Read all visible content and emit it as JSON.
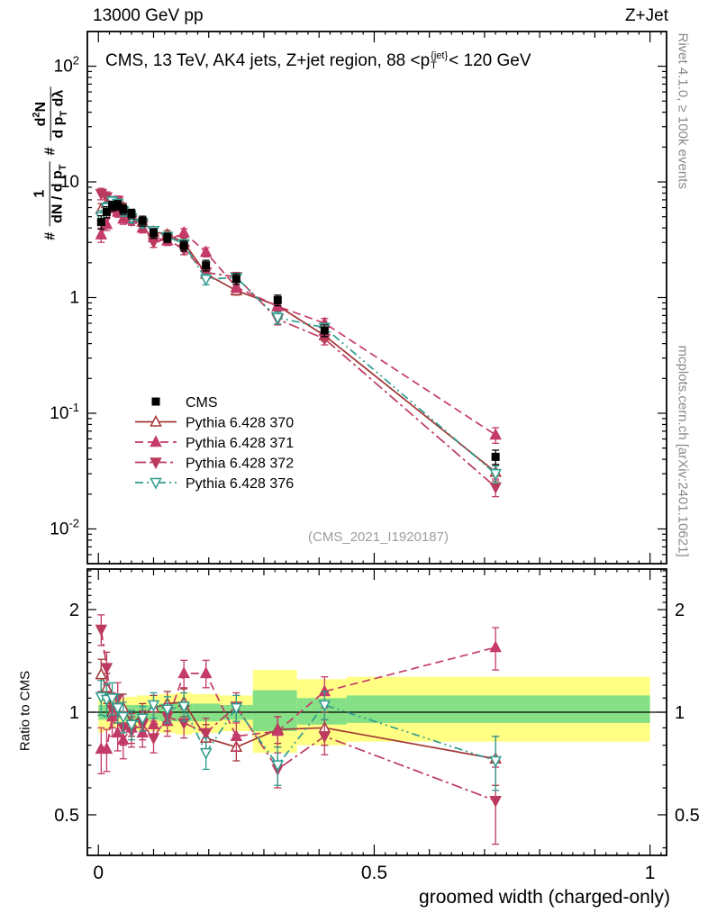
{
  "header": {
    "left": "13000 GeV pp",
    "right": "Z+Jet"
  },
  "title": {
    "a": "CMS, 13 TeV, AK4 jets, Z+jet region, 88 <p",
    "sup": "{jet}",
    "sub": "T",
    "b": "< 120 GeV"
  },
  "axis": {
    "y_ratio": "Ratio to CMS",
    "x": "groomed width (charged-only)",
    "y_main": {
      "hash1": "#",
      "num1": "1",
      "den1a": "dN / d p",
      "den1sub": "T",
      "hash2": "#",
      "num2a": "d",
      "num2sup": "2",
      "num2b": "N",
      "den2a": "d p",
      "den2sub": "T",
      "den2b": " dλ"
    }
  },
  "credits": {
    "top": "Rivet 4.1.0, ≥ 100k events",
    "bottom": "mcplots.cern.ch [arXiv:2401.10621]"
  },
  "watermark": "(CMS_2021_I1920187)",
  "chart_data": {
    "type": "line",
    "title": "CMS, 13 TeV, AK4 jets, Z+jet region, 88 <pT{jet}< 120 GeV",
    "xlabel": "groomed width (charged-only)",
    "ylabel": "# 1/(dN/dpT) d2N/(dpT dlambda)",
    "x_range": [
      -0.02,
      1.03
    ],
    "x_ticks": {
      "major": [
        0,
        0.5,
        1
      ],
      "major_labels": [
        "0",
        "0.5",
        "1"
      ],
      "minor_step": 0.1,
      "micro_step": 0.02
    },
    "main_panel": {
      "y_scale": "log",
      "y_range_log": [
        -2.3,
        2.3
      ],
      "y_ticks": [
        {
          "v": 100,
          "base": "10",
          "exp": "2"
        },
        {
          "v": 10,
          "base": "10",
          "exp": ""
        },
        {
          "v": 1,
          "base": "1",
          "exp": ""
        },
        {
          "v": 0.1,
          "base": "10",
          "exp": "-1"
        },
        {
          "v": 0.01,
          "base": "10",
          "exp": "-2"
        }
      ]
    },
    "ratio_panel": {
      "y_scale": "log",
      "y_range_log": [
        -0.42,
        0.42
      ],
      "y_ticks": [
        {
          "v": 2,
          "label": "2"
        },
        {
          "v": 1,
          "label": "1"
        },
        {
          "v": 0.5,
          "label": "0.5"
        }
      ],
      "unity": 1,
      "band_colors": {
        "outer": "#ffff84",
        "inner": "#86e086"
      },
      "bands": [
        {
          "x0": 0.0,
          "x1": 0.01,
          "ylo": 0.87,
          "yhi": 1.13,
          "glo": 0.95,
          "ghi": 1.05
        },
        {
          "x0": 0.01,
          "x1": 0.02,
          "ylo": 0.88,
          "yhi": 1.12,
          "glo": 0.95,
          "ghi": 1.05
        },
        {
          "x0": 0.02,
          "x1": 0.03,
          "ylo": 0.9,
          "yhi": 1.1,
          "glo": 0.96,
          "ghi": 1.04
        },
        {
          "x0": 0.03,
          "x1": 0.04,
          "ylo": 0.9,
          "yhi": 1.1,
          "glo": 0.96,
          "ghi": 1.04
        },
        {
          "x0": 0.04,
          "x1": 0.05,
          "ylo": 0.9,
          "yhi": 1.1,
          "glo": 0.96,
          "ghi": 1.04
        },
        {
          "x0": 0.05,
          "x1": 0.07,
          "ylo": 0.89,
          "yhi": 1.11,
          "glo": 0.95,
          "ghi": 1.05
        },
        {
          "x0": 0.07,
          "x1": 0.09,
          "ylo": 0.88,
          "yhi": 1.12,
          "glo": 0.95,
          "ghi": 1.05
        },
        {
          "x0": 0.09,
          "x1": 0.11,
          "ylo": 0.88,
          "yhi": 1.12,
          "glo": 0.95,
          "ghi": 1.05
        },
        {
          "x0": 0.11,
          "x1": 0.14,
          "ylo": 0.87,
          "yhi": 1.13,
          "glo": 0.94,
          "ghi": 1.06
        },
        {
          "x0": 0.14,
          "x1": 0.17,
          "ylo": 0.86,
          "yhi": 1.14,
          "glo": 0.94,
          "ghi": 1.06
        },
        {
          "x0": 0.17,
          "x1": 0.22,
          "ylo": 0.87,
          "yhi": 1.13,
          "glo": 0.94,
          "ghi": 1.06
        },
        {
          "x0": 0.22,
          "x1": 0.28,
          "ylo": 0.88,
          "yhi": 1.12,
          "glo": 0.95,
          "ghi": 1.05
        },
        {
          "x0": 0.28,
          "x1": 0.36,
          "ylo": 0.76,
          "yhi": 1.33,
          "glo": 0.88,
          "ghi": 1.16
        },
        {
          "x0": 0.36,
          "x1": 0.45,
          "ylo": 0.8,
          "yhi": 1.25,
          "glo": 0.92,
          "ghi": 1.1
        },
        {
          "x0": 0.45,
          "x1": 1.0,
          "ylo": 0.82,
          "yhi": 1.27,
          "glo": 0.93,
          "ghi": 1.12
        }
      ]
    },
    "x": [
      0.005,
      0.015,
      0.025,
      0.035,
      0.045,
      0.06,
      0.08,
      0.1,
      0.125,
      0.155,
      0.195,
      0.25,
      0.325,
      0.41,
      0.72
    ],
    "series": [
      {
        "name": "CMS",
        "color": "#000000",
        "marker": "square",
        "line": "none",
        "values": [
          4.5,
          5.5,
          6.2,
          6.3,
          5.8,
          5.3,
          4.6,
          3.6,
          3.3,
          2.8,
          1.9,
          1.45,
          0.95,
          0.52,
          0.042
        ],
        "errors": [
          0.6,
          0.6,
          0.6,
          0.6,
          0.55,
          0.5,
          0.45,
          0.35,
          0.3,
          0.28,
          0.2,
          0.15,
          0.1,
          0.06,
          0.006
        ]
      },
      {
        "name": "Pythia 6.428 370",
        "color": "#a23535",
        "marker": "triangle-up-open",
        "line": "solid",
        "values": [
          5.8,
          6.5,
          6.2,
          6.5,
          6.0,
          4.93,
          4.51,
          3.71,
          3.5,
          3.0,
          1.6,
          1.15,
          0.85,
          0.47,
          0.031
        ],
        "errors": [
          0.7,
          0.7,
          0.6,
          0.6,
          0.55,
          0.45,
          0.4,
          0.35,
          0.3,
          0.28,
          0.15,
          0.1,
          0.08,
          0.05,
          0.005
        ],
        "ratio": [
          1.29,
          1.18,
          1.0,
          1.03,
          1.03,
          0.93,
          0.98,
          1.03,
          1.06,
          1.07,
          0.84,
          0.79,
          0.89,
          0.9,
          0.73
        ],
        "ratio_errors": [
          0.14,
          0.12,
          0.1,
          0.1,
          0.1,
          0.08,
          0.08,
          0.09,
          0.09,
          0.1,
          0.08,
          0.07,
          0.08,
          0.1,
          0.12
        ]
      },
      {
        "name": "Pythia 6.428 371",
        "color": "#c43a68",
        "marker": "triangle-up",
        "line": "dashed",
        "values": [
          3.5,
          4.3,
          6.0,
          5.5,
          4.8,
          4.77,
          4.0,
          3.3,
          3.1,
          3.64,
          2.47,
          1.23,
          0.84,
          0.6,
          0.065
        ],
        "errors": [
          0.5,
          0.5,
          0.6,
          0.55,
          0.5,
          0.45,
          0.38,
          0.3,
          0.28,
          0.3,
          0.22,
          0.12,
          0.08,
          0.06,
          0.01
        ],
        "ratio": [
          0.78,
          0.78,
          0.97,
          0.87,
          0.83,
          0.9,
          0.87,
          0.92,
          0.94,
          1.3,
          1.3,
          0.85,
          0.88,
          1.15,
          1.55
        ],
        "ratio_errors": [
          0.12,
          0.11,
          0.12,
          0.1,
          0.1,
          0.09,
          0.08,
          0.08,
          0.09,
          0.12,
          0.12,
          0.08,
          0.09,
          0.12,
          0.22
        ]
      },
      {
        "name": "Pythia 6.428 372",
        "color": "#bc3a5e",
        "marker": "triangle-down",
        "line": "dash-dot",
        "values": [
          7.9,
          7.4,
          6.3,
          6.9,
          5.2,
          4.66,
          4.23,
          3.02,
          3.2,
          2.6,
          1.65,
          1.51,
          0.65,
          0.44,
          0.023
        ],
        "errors": [
          0.9,
          0.8,
          0.65,
          0.65,
          0.5,
          0.45,
          0.4,
          0.3,
          0.3,
          0.25,
          0.17,
          0.14,
          0.07,
          0.05,
          0.004
        ],
        "ratio": [
          1.75,
          1.35,
          1.02,
          1.1,
          0.9,
          0.88,
          0.92,
          0.84,
          0.97,
          0.93,
          0.87,
          1.04,
          0.68,
          0.85,
          0.55
        ],
        "ratio_errors": [
          0.18,
          0.15,
          0.12,
          0.12,
          0.1,
          0.09,
          0.09,
          0.08,
          0.09,
          0.09,
          0.09,
          0.1,
          0.08,
          0.1,
          0.14
        ]
      },
      {
        "name": "Pythia 6.428 376",
        "color": "#2f9c8e",
        "marker": "triangle-down-open",
        "line": "dash-dot-dot",
        "values": [
          5.0,
          6.0,
          6.8,
          6.5,
          5.6,
          4.88,
          4.42,
          3.78,
          3.37,
          2.91,
          1.44,
          1.49,
          0.67,
          0.55,
          0.03
        ],
        "errors": [
          0.65,
          0.65,
          0.65,
          0.6,
          0.55,
          0.45,
          0.4,
          0.33,
          0.3,
          0.26,
          0.15,
          0.13,
          0.08,
          0.05,
          0.005
        ],
        "ratio": [
          1.11,
          1.09,
          1.1,
          1.03,
          0.97,
          0.92,
          0.96,
          1.05,
          1.02,
          1.04,
          0.76,
          1.03,
          0.7,
          1.05,
          0.72
        ],
        "ratio_errors": [
          0.13,
          0.12,
          0.12,
          0.1,
          0.1,
          0.09,
          0.08,
          0.09,
          0.09,
          0.1,
          0.08,
          0.09,
          0.09,
          0.1,
          0.13
        ]
      }
    ],
    "legend_position": "inside-left-middle",
    "grid": false
  }
}
